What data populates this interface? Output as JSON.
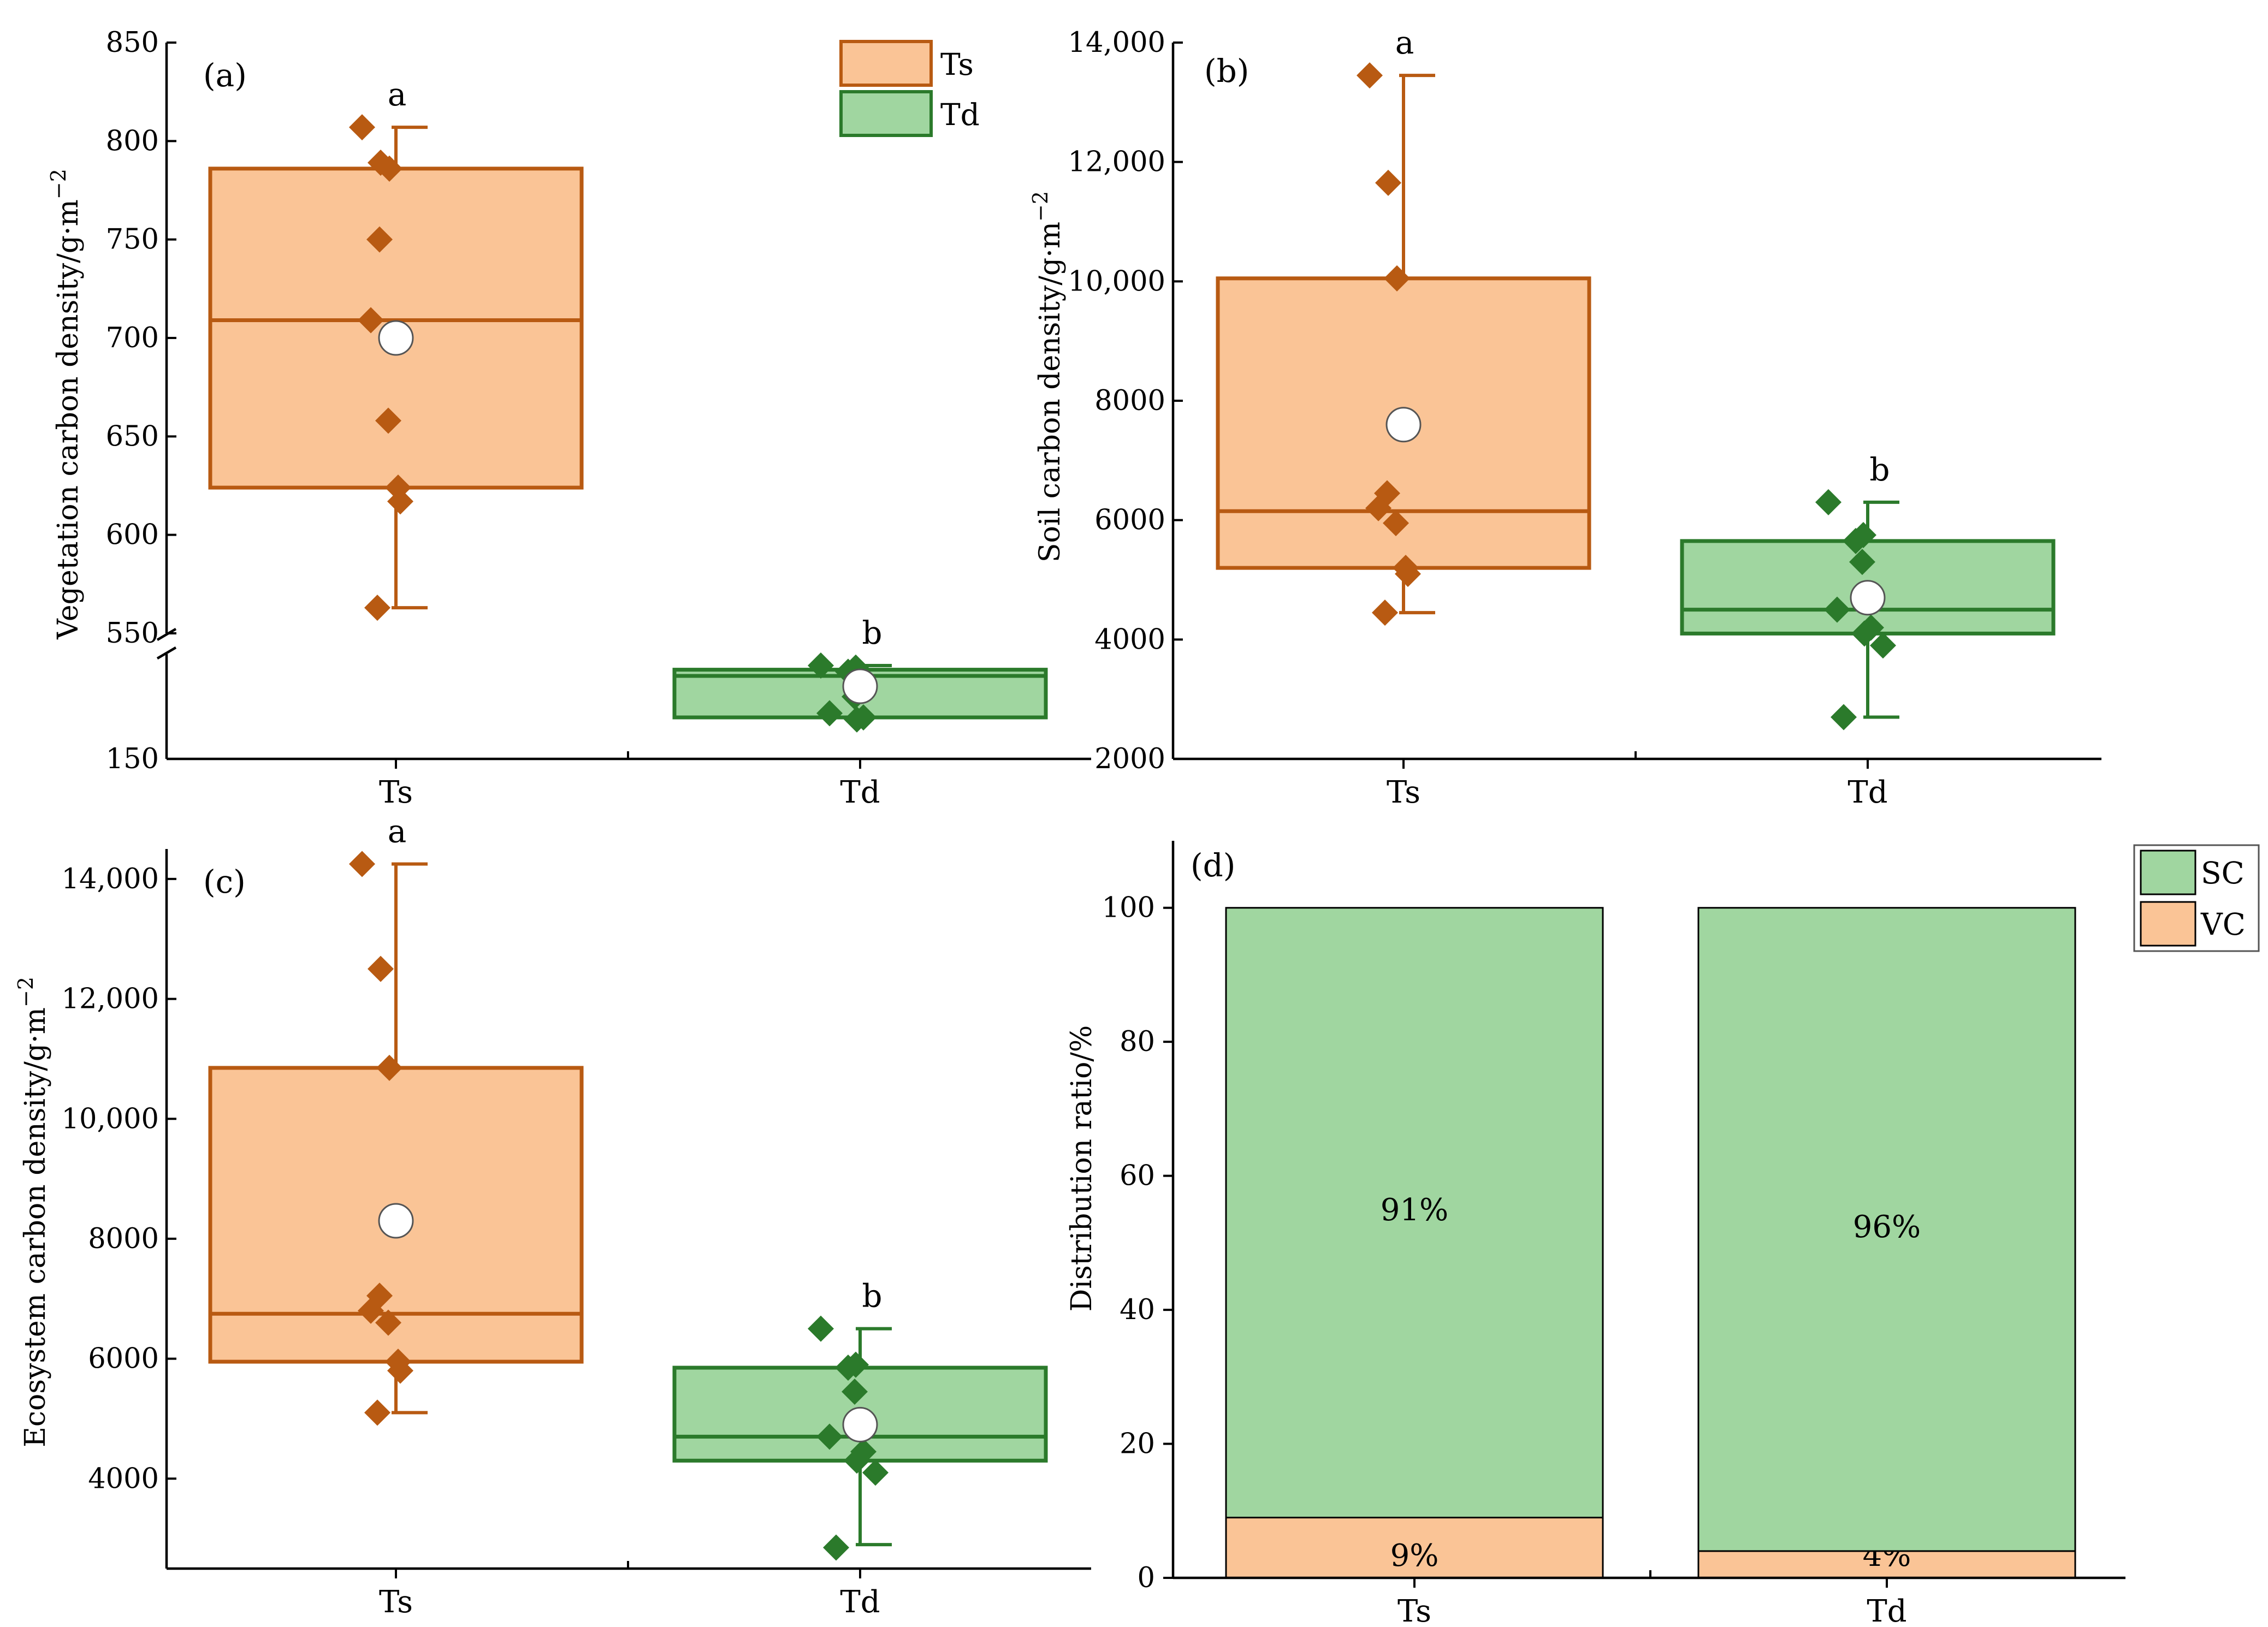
{
  "colors": {
    "ts_fill": "#FAC496",
    "ts_stroke": "#B85A12",
    "td_fill": "#A0D6A0",
    "td_stroke": "#2B7A2B",
    "sc_fill": "#A0D6A0",
    "vc_fill": "#FAC496"
  },
  "legend_ab": {
    "ts": "Ts",
    "td": "Td"
  },
  "legend_d": {
    "sc": "SC",
    "vc": "VC"
  },
  "chart_data": [
    {
      "panel": "(a)",
      "type": "box",
      "ylabel": "Vegetation carbon density/g·m",
      "ylabel_sup": "−2",
      "categories": [
        "Ts",
        "Td"
      ],
      "y_break": [
        200,
        550
      ],
      "yticks_lower": [
        150
      ],
      "yticks_upper": [
        550,
        600,
        650,
        700,
        750,
        800,
        850
      ],
      "ytick_labels_lower": [
        "150"
      ],
      "ytick_labels_upper": [
        "550",
        "600",
        "650",
        "700",
        "750",
        "800",
        "850"
      ],
      "series": [
        {
          "category": "Ts",
          "whisker_low": 563,
          "q1": 624,
          "median": 709,
          "q3": 786,
          "whisker_high": 807,
          "mean": 700,
          "points": [
            807,
            789,
            786,
            750,
            709,
            658,
            624,
            617,
            563
          ],
          "letter": "a"
        },
        {
          "category": "Td",
          "whisker_low": 170,
          "q1": 170,
          "median": 190,
          "q3": 193,
          "whisker_high": 195,
          "mean": 185,
          "points": [
            195,
            194,
            192,
            180,
            172,
            170,
            169
          ],
          "letter": "b"
        }
      ]
    },
    {
      "panel": "(b)",
      "type": "box",
      "ylabel": "Soil carbon density/g·m",
      "ylabel_sup": "−2",
      "categories": [
        "Ts",
        "Td"
      ],
      "ylim": [
        2000,
        14000
      ],
      "yticks": [
        2000,
        4000,
        6000,
        8000,
        10000,
        12000,
        14000
      ],
      "ytick_labels": [
        "2000",
        "4000",
        "6000",
        "8000",
        "10,000",
        "12,000",
        "14,000"
      ],
      "series": [
        {
          "category": "Ts",
          "whisker_low": 4450,
          "q1": 5200,
          "median": 6150,
          "q3": 10050,
          "whisker_high": 13450,
          "mean": 7600,
          "points": [
            13450,
            11650,
            10050,
            6450,
            6200,
            5950,
            5200,
            5100,
            4450
          ],
          "letter": "a"
        },
        {
          "category": "Td",
          "whisker_low": 2700,
          "q1": 4100,
          "median": 4500,
          "q3": 5650,
          "whisker_high": 6300,
          "mean": 4700,
          "points": [
            6300,
            5750,
            5650,
            5300,
            4500,
            4200,
            4100,
            3900,
            2700
          ],
          "letter": "b"
        }
      ]
    },
    {
      "panel": "(c)",
      "type": "box",
      "ylabel": "Ecosystem carbon density/g·m",
      "ylabel_sup": "−2",
      "categories": [
        "Ts",
        "Td"
      ],
      "ylim": [
        2500,
        14500
      ],
      "yticks": [
        4000,
        6000,
        8000,
        10000,
        12000,
        14000
      ],
      "ytick_labels": [
        "4000",
        "6000",
        "8000",
        "10,000",
        "12,000",
        "14,000"
      ],
      "series": [
        {
          "category": "Ts",
          "whisker_low": 5100,
          "q1": 5950,
          "median": 6750,
          "q3": 10850,
          "whisker_high": 14250,
          "mean": 8300,
          "points": [
            14250,
            12500,
            10850,
            7050,
            6800,
            6600,
            5950,
            5800,
            5100
          ],
          "letter": "a"
        },
        {
          "category": "Td",
          "whisker_low": 2900,
          "q1": 4300,
          "median": 4700,
          "q3": 5850,
          "whisker_high": 6500,
          "mean": 4900,
          "points": [
            6500,
            5900,
            5850,
            5450,
            4700,
            4450,
            4300,
            4100,
            2850
          ],
          "letter": "b"
        }
      ]
    },
    {
      "panel": "(d)",
      "type": "bar",
      "stacked": true,
      "ylabel": "Distribution ratio/%",
      "categories": [
        "Ts",
        "Td"
      ],
      "ylim": [
        0,
        110
      ],
      "yticks": [
        0,
        20,
        40,
        60,
        80,
        100
      ],
      "ytick_labels": [
        "0",
        "20",
        "40",
        "60",
        "80",
        "100"
      ],
      "series": [
        {
          "name": "VC",
          "values": [
            9,
            4
          ],
          "labels": [
            "9%",
            "4%"
          ]
        },
        {
          "name": "SC",
          "values": [
            91,
            96
          ],
          "labels": [
            "91%",
            "96%"
          ]
        }
      ]
    }
  ]
}
